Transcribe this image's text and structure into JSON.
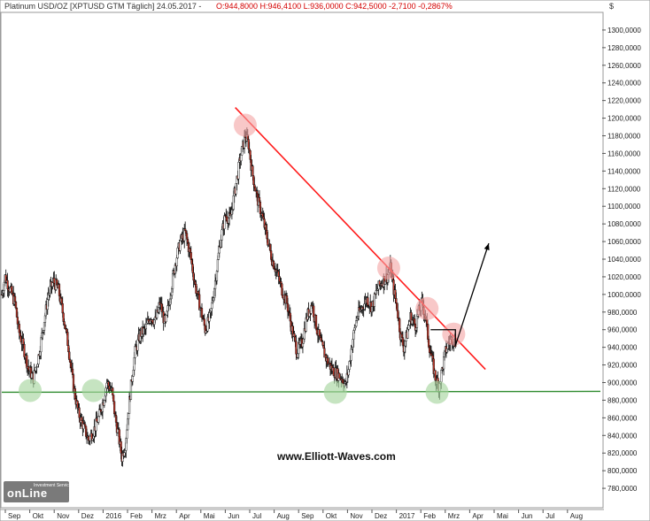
{
  "header": {
    "instrument": "Platinum USD/OZ [XPTUSD GTM  Täglich] 24.05.2017 -",
    "ohlc": "O:944,8000 H:946,4100 L:936,0000 C:942,5000 -2,7100 -0,2867%",
    "currency_symbol": "$"
  },
  "watermark": "www.Elliott-Waves.com",
  "logo": {
    "main": "onLine",
    "small": "Investment Service"
  },
  "colors": {
    "plot_bg": "#ffffff",
    "candle_up": "#ffffff",
    "candle_down": "#c0392b",
    "wick": "#000000",
    "trendline": "#ff1a1a",
    "support": "#2e8b2e",
    "circle_red": "#f4a3a3",
    "circle_green": "#a8d5a0",
    "arrow": "#000000"
  },
  "chart_data": {
    "type": "candlestick",
    "title": "Platinum USD/OZ",
    "ylim": [
      760,
      1320
    ],
    "y_ticks": [
      "780,0000",
      "800,0000",
      "820,0000",
      "840,0000",
      "860,0000",
      "880,0000",
      "900,0000",
      "920,0000",
      "940,0000",
      "960,0000",
      "980,0000",
      "1000,0000",
      "1020,0000",
      "1040,0000",
      "1060,0000",
      "1080,0000",
      "1100,0000",
      "1120,0000",
      "1140,0000",
      "1160,0000",
      "1180,0000",
      "1200,0000",
      "1220,0000",
      "1240,0000",
      "1260,0000",
      "1280,0000",
      "1300,0000"
    ],
    "x_ticks": [
      "Sep",
      "Okt",
      "Nov",
      "Dez",
      "2016",
      "Feb",
      "Mrz",
      "Apr",
      "Mai",
      "Jun",
      "Jul",
      "Aug",
      "Sep",
      "Okt",
      "Nov",
      "Dez",
      "2017",
      "Feb",
      "Mrz",
      "Apr",
      "Mai",
      "Jun",
      "Jul",
      "Aug"
    ],
    "price_path": [
      [
        0,
        1000
      ],
      [
        2,
        1020
      ],
      [
        5,
        1005
      ],
      [
        8,
        990
      ],
      [
        10,
        960
      ],
      [
        13,
        940
      ],
      [
        16,
        915
      ],
      [
        19,
        905
      ],
      [
        22,
        930
      ],
      [
        25,
        965
      ],
      [
        28,
        1000
      ],
      [
        31,
        1015
      ],
      [
        34,
        1005
      ],
      [
        37,
        975
      ],
      [
        40,
        940
      ],
      [
        43,
        895
      ],
      [
        46,
        865
      ],
      [
        49,
        850
      ],
      [
        52,
        835
      ],
      [
        55,
        845
      ],
      [
        58,
        860
      ],
      [
        61,
        880
      ],
      [
        63,
        900
      ],
      [
        66,
        890
      ],
      [
        68,
        860
      ],
      [
        70,
        840
      ],
      [
        72,
        815
      ],
      [
        74,
        830
      ],
      [
        76,
        870
      ],
      [
        78,
        905
      ],
      [
        80,
        935
      ],
      [
        83,
        955
      ],
      [
        86,
        960
      ],
      [
        89,
        975
      ],
      [
        92,
        970
      ],
      [
        95,
        990
      ],
      [
        98,
        965
      ],
      [
        101,
        1000
      ],
      [
        104,
        1035
      ],
      [
        107,
        1060
      ],
      [
        110,
        1070
      ],
      [
        113,
        1045
      ],
      [
        116,
        1010
      ],
      [
        119,
        985
      ],
      [
        122,
        960
      ],
      [
        125,
        975
      ],
      [
        128,
        1015
      ],
      [
        131,
        1060
      ],
      [
        134,
        1090
      ],
      [
        137,
        1085
      ],
      [
        140,
        1120
      ],
      [
        143,
        1155
      ],
      [
        146,
        1180
      ],
      [
        148,
        1170
      ],
      [
        150,
        1140
      ],
      [
        153,
        1110
      ],
      [
        156,
        1090
      ],
      [
        159,
        1065
      ],
      [
        162,
        1040
      ],
      [
        165,
        1025
      ],
      [
        168,
        1005
      ],
      [
        171,
        990
      ],
      [
        174,
        960
      ],
      [
        177,
        935
      ],
      [
        180,
        945
      ],
      [
        183,
        975
      ],
      [
        186,
        990
      ],
      [
        189,
        960
      ],
      [
        192,
        940
      ],
      [
        195,
        925
      ],
      [
        198,
        915
      ],
      [
        201,
        910
      ],
      [
        204,
        905
      ],
      [
        206,
        897
      ],
      [
        208,
        915
      ],
      [
        210,
        945
      ],
      [
        213,
        975
      ],
      [
        216,
        985
      ],
      [
        219,
        995
      ],
      [
        222,
        985
      ],
      [
        225,
        1005
      ],
      [
        228,
        1015
      ],
      [
        231,
        1020
      ],
      [
        233,
        1030
      ],
      [
        235,
        1005
      ],
      [
        237,
        985
      ],
      [
        239,
        955
      ],
      [
        241,
        940
      ],
      [
        243,
        955
      ],
      [
        245,
        975
      ],
      [
        248,
        965
      ],
      [
        250,
        980
      ],
      [
        252,
        990
      ],
      [
        254,
        975
      ],
      [
        256,
        945
      ],
      [
        258,
        925
      ],
      [
        260,
        905
      ],
      [
        262,
        896
      ],
      [
        264,
        915
      ],
      [
        266,
        935
      ],
      [
        268,
        945
      ],
      [
        270,
        950
      ],
      [
        271,
        948
      ],
      [
        272,
        945
      ]
    ],
    "support_level": 889,
    "trendline": {
      "x": [
        140,
        290
      ],
      "y": [
        1212,
        915
      ]
    },
    "projection_arrow": {
      "from": [
        272,
        960
      ],
      "to": [
        292,
        1058
      ]
    },
    "pivots_red": [
      [
        146,
        1192
      ],
      [
        232,
        1030
      ],
      [
        255,
        984
      ],
      [
        271,
        955
      ]
    ],
    "pivots_green": [
      [
        17,
        891
      ],
      [
        55,
        891
      ],
      [
        200,
        889
      ],
      [
        261,
        889
      ]
    ]
  }
}
